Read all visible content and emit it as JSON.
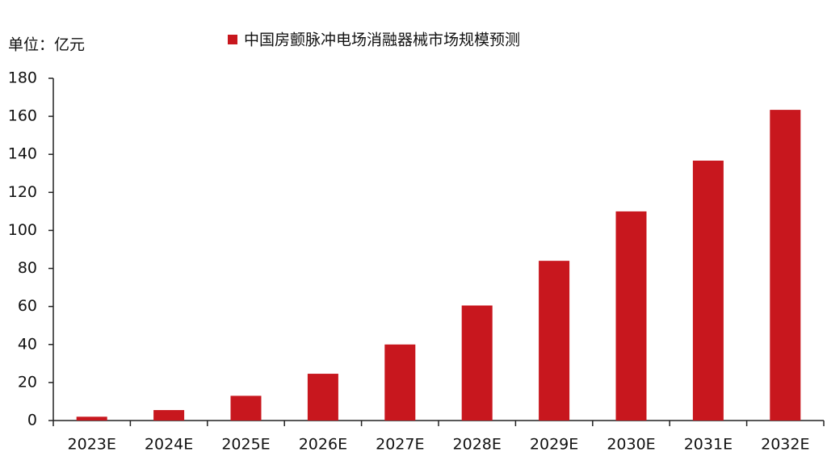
{
  "chart_data": {
    "type": "bar",
    "unit_label": "单位：亿元",
    "categories": [
      "2023E",
      "2024E",
      "2025E",
      "2026E",
      "2027E",
      "2028E",
      "2029E",
      "2030E",
      "2031E",
      "2032E"
    ],
    "series": [
      {
        "name": "中国房颤脉冲电场消融器械市场规模预测",
        "color": "#c8171e",
        "values": [
          2,
          5.5,
          13,
          24.6,
          40,
          60.5,
          84,
          110,
          136.7,
          163.4
        ]
      }
    ],
    "ylim": [
      0,
      180
    ],
    "yticks": [
      0,
      20,
      40,
      60,
      80,
      100,
      120,
      140,
      160,
      180
    ],
    "grid": false
  }
}
